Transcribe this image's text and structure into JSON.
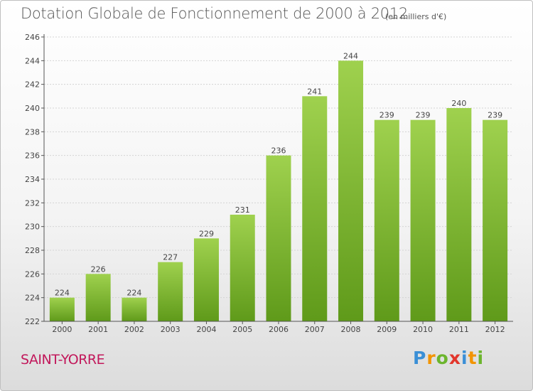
{
  "title": "Dotation Globale de Fonctionnement de 2000 à 2012",
  "subtitle": "(en milliers d'€)",
  "commune": "SAINT-YORRE",
  "logo": {
    "letters": [
      "P",
      "r",
      "o",
      "x",
      "i",
      "t",
      "i"
    ],
    "colors": [
      "#3a8fd6",
      "#f29400",
      "#6cb52d",
      "#e2362c",
      "#3a8fd6",
      "#f29400",
      "#6cb52d"
    ]
  },
  "chart_data": {
    "type": "bar",
    "categories": [
      "2000",
      "2001",
      "2002",
      "2003",
      "2004",
      "2005",
      "2006",
      "2007",
      "2008",
      "2009",
      "2010",
      "2011",
      "2012"
    ],
    "values": [
      224,
      226,
      224,
      227,
      229,
      231,
      236,
      241,
      244,
      239,
      239,
      240,
      239
    ],
    "title": "Dotation Globale de Fonctionnement de 2000 à 2012",
    "subtitle": "(en milliers d'€)",
    "ylim": [
      222,
      246
    ],
    "yticks": [
      222,
      224,
      226,
      228,
      230,
      232,
      234,
      236,
      238,
      240,
      242,
      244,
      246
    ],
    "grid": true,
    "bar_color": "#8cc63f"
  }
}
